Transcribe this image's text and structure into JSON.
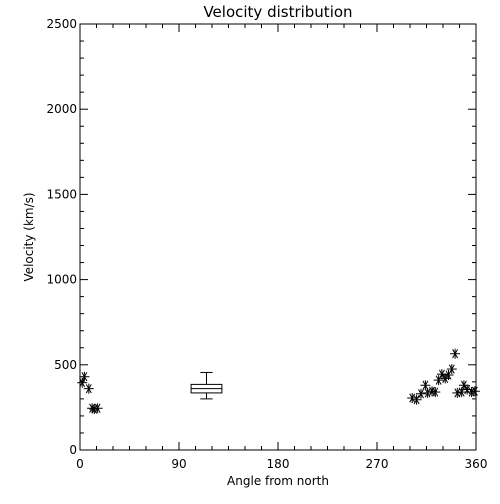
{
  "chart_data": {
    "type": "scatter",
    "title": "Velocity distribution",
    "xlabel": "Angle from north",
    "ylabel": "Velocity (km/s)",
    "xlim": [
      0,
      360
    ],
    "ylim": [
      0,
      2500
    ],
    "xticks": [
      0,
      90,
      180,
      270,
      360
    ],
    "yticks": [
      0,
      500,
      1000,
      1500,
      2000,
      2500
    ],
    "xtick_labels": [
      "0",
      "90",
      "180",
      "270",
      "360"
    ],
    "ytick_labels": [
      "0",
      "500",
      "1000",
      "1500",
      "2000",
      "2500"
    ],
    "grid": false,
    "legend": "none",
    "colors": {
      "axes": "#000000",
      "marks": "#000000",
      "background": "#ffffff"
    },
    "points": [
      {
        "x": 2,
        "y": 395
      },
      {
        "x": 4,
        "y": 430
      },
      {
        "x": 8,
        "y": 360
      },
      {
        "x": 11,
        "y": 245
      },
      {
        "x": 13,
        "y": 240
      },
      {
        "x": 16,
        "y": 245
      },
      {
        "x": 302,
        "y": 305
      },
      {
        "x": 306,
        "y": 295
      },
      {
        "x": 310,
        "y": 330
      },
      {
        "x": 314,
        "y": 380
      },
      {
        "x": 316,
        "y": 335
      },
      {
        "x": 320,
        "y": 345
      },
      {
        "x": 323,
        "y": 340
      },
      {
        "x": 326,
        "y": 410
      },
      {
        "x": 329,
        "y": 445
      },
      {
        "x": 332,
        "y": 420
      },
      {
        "x": 335,
        "y": 440
      },
      {
        "x": 338,
        "y": 475
      },
      {
        "x": 341,
        "y": 565
      },
      {
        "x": 343,
        "y": 335
      },
      {
        "x": 347,
        "y": 340
      },
      {
        "x": 349,
        "y": 380
      },
      {
        "x": 352,
        "y": 355
      },
      {
        "x": 356,
        "y": 340
      },
      {
        "x": 359,
        "y": 345
      }
    ],
    "boxplot": {
      "x": 115,
      "width": 28,
      "whisker_low": 300,
      "q1": 335,
      "median": 360,
      "q3": 385,
      "whisker_high": 455
    }
  }
}
